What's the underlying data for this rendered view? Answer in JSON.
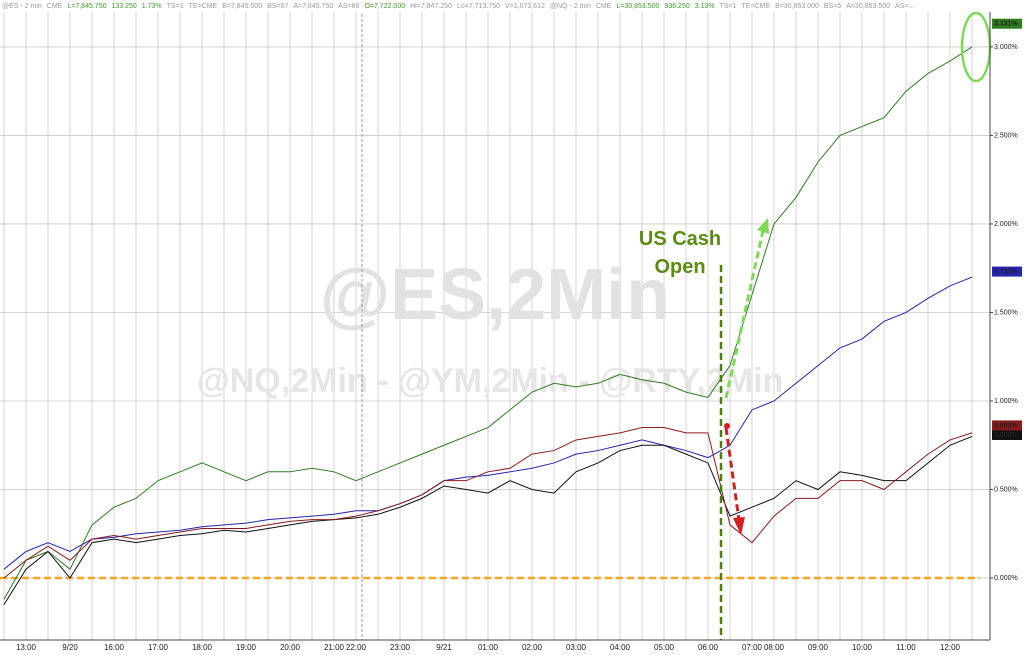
{
  "chart_data": {
    "type": "line",
    "header": [
      "@ES - 2 min",
      "CME",
      "L=7,845.750",
      "133.250",
      "1.73%",
      "TS=1",
      "TE=CME",
      "B=7,845.500",
      "BS=67",
      "A=7,845.750",
      "AS=86",
      "O=7,722.000",
      "Hi=7,847.250",
      "Lo=7,713.750",
      "V=1,073,612",
      "@NQ - 2 min",
      "CME",
      "L=30,853.500",
      "936.250",
      "3.13%",
      "TS=1",
      "TE=CME",
      "B=30,853.000",
      "BS=5",
      "A=30,853.500",
      "AS=..."
    ],
    "watermark": "@ES,2Min",
    "watermark_sub": "@NQ,2Min - @YM,2Min - @RTY,2Min",
    "annotation": "US Cash Open",
    "categories": [
      null,
      "13:00",
      null,
      "9/20",
      null,
      "16:00",
      null,
      "17:00",
      null,
      "18:00",
      null,
      "19:00",
      null,
      "20:00",
      null,
      "21:00",
      "22:00",
      null,
      "23:00",
      null,
      "9/21",
      null,
      "01:00",
      null,
      "02:00",
      null,
      "03:00",
      null,
      "04:00",
      null,
      "05:00",
      null,
      "06:00",
      null,
      "07:00",
      "08:00",
      null,
      "09:00",
      null,
      "10:00",
      null,
      "11:00",
      null,
      "12:00",
      null
    ],
    "series": [
      {
        "name": "@NQ",
        "color": "#2e7d1f",
        "last_value": 3.131,
        "last_label": "3.131%",
        "values": [
          -0.12,
          0.1,
          0.15,
          0.05,
          0.3,
          0.4,
          0.45,
          0.55,
          0.6,
          0.65,
          0.6,
          0.55,
          0.6,
          0.6,
          0.62,
          0.6,
          0.55,
          0.6,
          0.65,
          0.7,
          0.75,
          0.8,
          0.85,
          0.95,
          1.05,
          1.1,
          1.08,
          1.1,
          1.15,
          1.12,
          1.1,
          1.05,
          1.02,
          1.2,
          1.6,
          2.0,
          2.15,
          2.35,
          2.5,
          2.55,
          2.6,
          2.75,
          2.85,
          2.92,
          3.0
        ]
      },
      {
        "name": "@ES",
        "color": "#2424b0",
        "last_value": 1.731,
        "last_label": "1.731%",
        "values": [
          0.05,
          0.15,
          0.2,
          0.15,
          0.22,
          0.23,
          0.25,
          0.26,
          0.27,
          0.29,
          0.3,
          0.31,
          0.33,
          0.34,
          0.35,
          0.36,
          0.38,
          0.38,
          0.42,
          0.47,
          0.55,
          0.57,
          0.58,
          0.6,
          0.62,
          0.65,
          0.7,
          0.72,
          0.75,
          0.78,
          0.75,
          0.72,
          0.68,
          0.75,
          0.95,
          1.0,
          1.1,
          1.2,
          1.3,
          1.35,
          1.45,
          1.5,
          1.58,
          1.65,
          1.7
        ]
      },
      {
        "name": "@YM",
        "color": "#111111",
        "last_value": 0.808,
        "last_label": "0.808%",
        "values": [
          -0.15,
          0.05,
          0.15,
          0.0,
          0.2,
          0.22,
          0.2,
          0.22,
          0.24,
          0.25,
          0.27,
          0.26,
          0.28,
          0.3,
          0.32,
          0.33,
          0.34,
          0.36,
          0.4,
          0.45,
          0.52,
          0.5,
          0.48,
          0.55,
          0.5,
          0.48,
          0.6,
          0.65,
          0.72,
          0.75,
          0.75,
          0.7,
          0.65,
          0.35,
          0.4,
          0.45,
          0.55,
          0.5,
          0.6,
          0.58,
          0.55,
          0.55,
          0.65,
          0.75,
          0.8
        ]
      },
      {
        "name": "@RTY",
        "color": "#8b1a1a",
        "last_value": 0.862,
        "last_label": "0.862%",
        "values": [
          0.0,
          0.1,
          0.18,
          0.1,
          0.22,
          0.24,
          0.22,
          0.24,
          0.26,
          0.28,
          0.28,
          0.28,
          0.3,
          0.32,
          0.33,
          0.33,
          0.35,
          0.38,
          0.42,
          0.47,
          0.55,
          0.55,
          0.6,
          0.62,
          0.7,
          0.72,
          0.78,
          0.8,
          0.82,
          0.85,
          0.85,
          0.82,
          0.82,
          0.3,
          0.2,
          0.35,
          0.45,
          0.45,
          0.55,
          0.55,
          0.5,
          0.6,
          0.7,
          0.78,
          0.82
        ]
      }
    ],
    "reference_line": {
      "value": 0,
      "color": "#f5a623"
    },
    "ylim": [
      -0.35,
      3.265
    ],
    "yticks": [
      {
        "value": 0,
        "label": "0.000%"
      },
      {
        "value": 0.5,
        "label": "0.500%"
      },
      {
        "value": 1,
        "label": "1.000%"
      },
      {
        "value": 1.5,
        "label": "1.500%"
      },
      {
        "value": 2,
        "label": "2.000%"
      },
      {
        "value": 2.5,
        "label": "2.500%"
      },
      {
        "value": 3,
        "label": "3.000%"
      }
    ],
    "grid": true
  }
}
